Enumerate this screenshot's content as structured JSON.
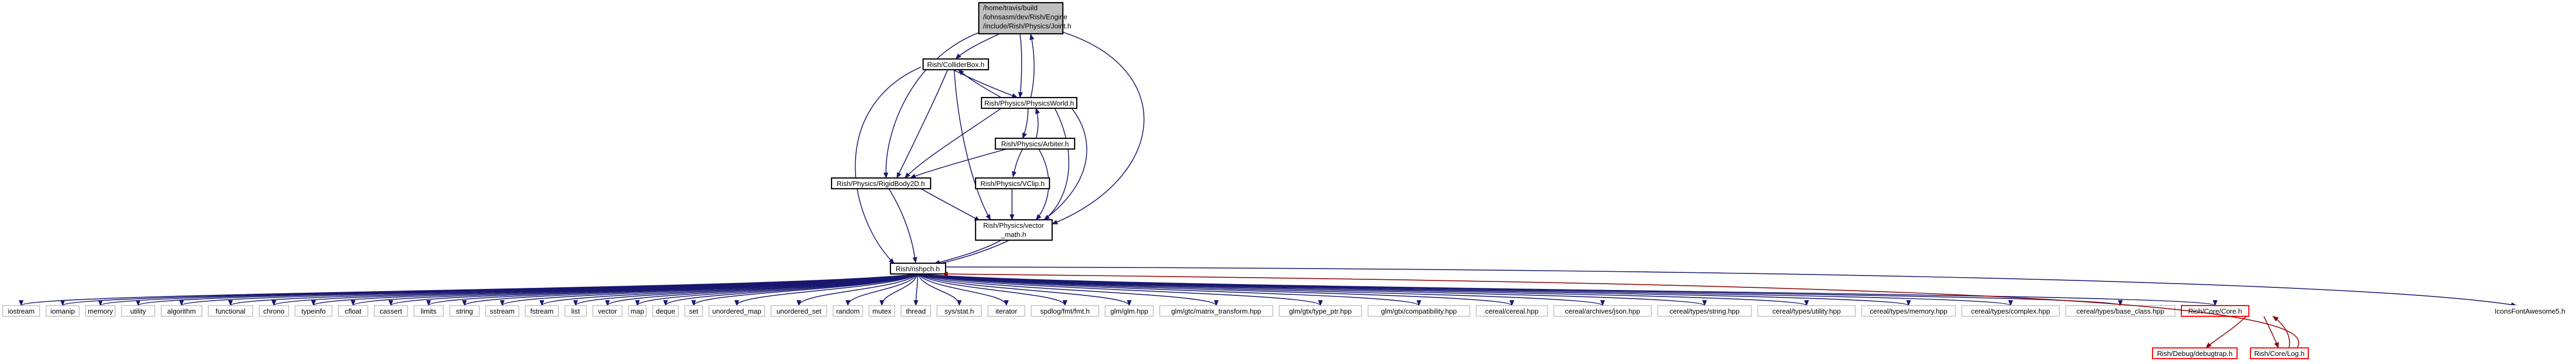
{
  "nodes": {
    "root_l1": "/home/travis/build",
    "root_l2": "/lohnsasm/dev/Rish/Engine",
    "root_l3": "/include/Rish/Physics/Joint.h",
    "collider": "Rish/ColliderBox.h",
    "world": "Rish/Physics/PhysicsWorld.h",
    "arbiter": "Rish/Physics/Arbiter.h",
    "rigid": "Rish/Physics/RigidBody2D.h",
    "vclip": "Rish/Physics/VClip.h",
    "vm_l1": "Rish/Physics/vector",
    "vm_l2": "_math.h",
    "rishpch": "Rish/rishpch.h",
    "debugtrap": "Rish/Debug/debugtrap.h",
    "corelog": "Rish/Core/Log.h",
    "icons": "IconsFontAwesome5.h"
  },
  "headers": [
    "iostream",
    "iomanip",
    "memory",
    "utility",
    "algorithm",
    "functional",
    "chrono",
    "typeinfo",
    "cfloat",
    "cassert",
    "limits",
    "string",
    "sstream",
    "fstream",
    "list",
    "vector",
    "map",
    "deque",
    "set",
    "unordered_map",
    "unordered_set",
    "random",
    "mutex",
    "thread",
    "sys/stat.h",
    "iterator",
    "spdlog/fmt/fmt.h",
    "glm/glm.hpp",
    "glm/gtc/matrix_transform.hpp",
    "glm/gtx/type_ptr.hpp",
    "glm/gtx/compatibility.hpp",
    "cereal/cereal.hpp",
    "cereal/archives/json.hpp",
    "cereal/types/string.hpp",
    "cereal/types/utility.hpp",
    "cereal/types/memory.hpp",
    "cereal/types/complex.hpp",
    "cereal/types/base_class.hpp",
    "Rish/Core/Core.h"
  ],
  "colors": {
    "edge": "#191970",
    "edge_red": "#8b0000",
    "root_fill": "#bfbfbf"
  }
}
